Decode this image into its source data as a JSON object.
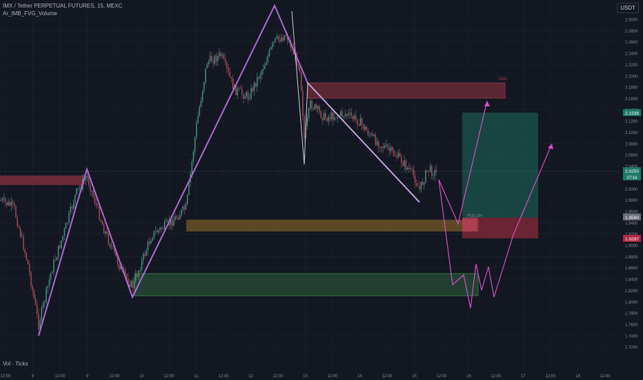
{
  "header": {
    "symbol_line": "IMX / Tether PERPETUAL FUTURES, 15, MEXC",
    "indicator": "Ar_IMB_FVG_Volume"
  },
  "currency_button": "USDT",
  "volume_label": "Vol · Ticks",
  "y_axis": {
    "ticks": [
      "2.3000",
      "2.2800",
      "2.2600",
      "2.2400",
      "2.2200",
      "2.2000",
      "2.1800",
      "2.1600",
      "2.1400",
      "2.1200",
      "2.1000",
      "2.0800",
      "2.0600",
      "2.0400",
      "2.0200",
      "2.0000",
      "1.9800",
      "1.9600",
      "1.9400",
      "1.9200",
      "1.9000",
      "1.8800",
      "1.8600",
      "1.8400",
      "1.8200",
      "1.8000",
      "1.7800",
      "1.7600",
      "1.7400",
      "1.7200"
    ]
  },
  "x_axis": {
    "labels": [
      "12:00",
      "8",
      "12:00",
      "9",
      "12:00",
      "10",
      "12:00",
      "11",
      "12:00",
      "12",
      "12:00",
      "13",
      "12:00",
      "14",
      "12:00",
      "15",
      "12:00",
      "16",
      "12:00",
      "17",
      "12:00",
      "18",
      "12:00"
    ]
  },
  "price_tags": {
    "target": "2.1336",
    "current_price": "2.0250",
    "countdown": "07:16",
    "entry": "1.9560",
    "stop": "1.9287"
  },
  "zone_labels": {
    "supply_15m": "15m",
    "poi": "POI 1H"
  },
  "colors": {
    "background": "#131722",
    "zigzag": "#b26cd6",
    "projection": "#d94fc8",
    "supply_zone": "#b23a4a",
    "orange_zone": "#a87a2a",
    "green_zone": "#3a8a4a",
    "long_target": "#1e6b5c",
    "long_stop": "#8a2a3a",
    "candle_up": "#4a9c8c",
    "candle_down": "#b2525c"
  }
}
